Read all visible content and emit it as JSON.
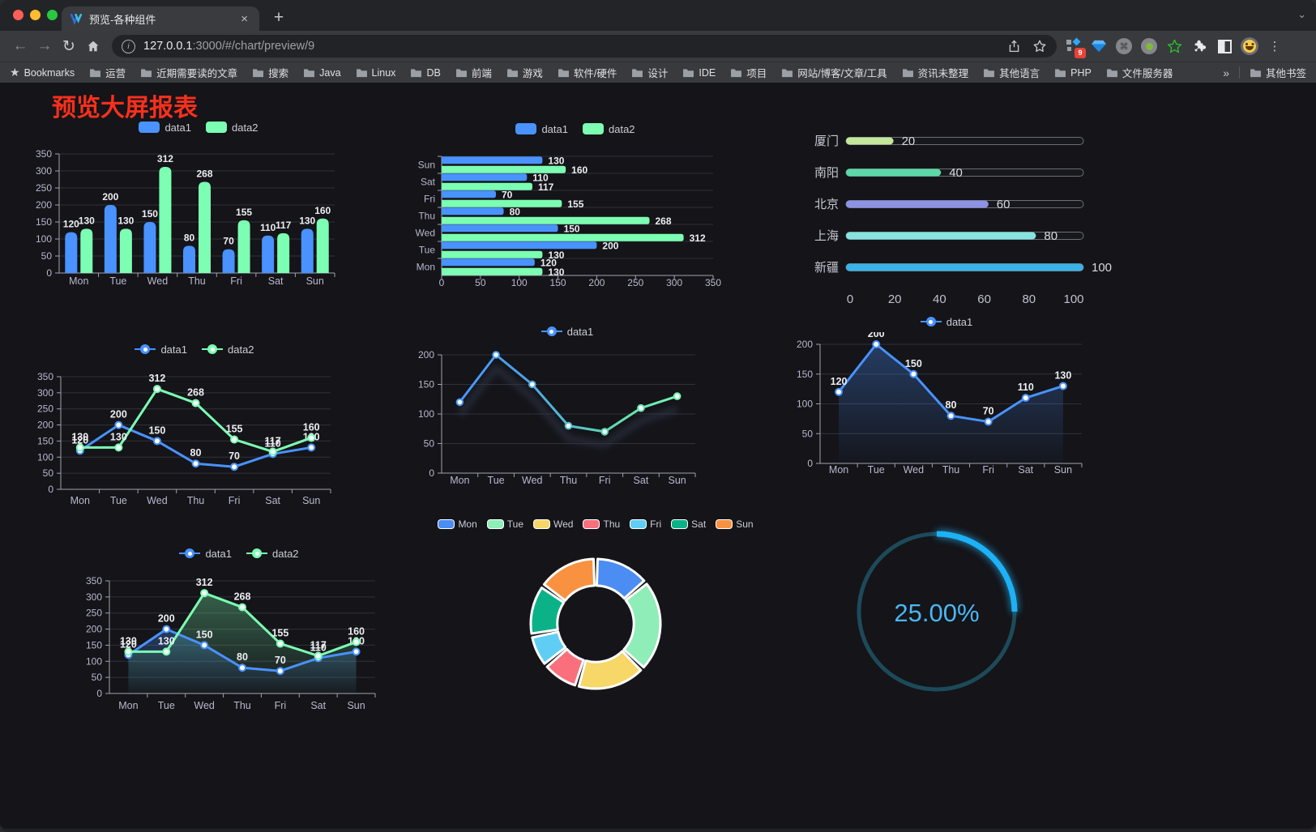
{
  "browser": {
    "traffic_lights": [
      "#ff5f57",
      "#febc2e",
      "#28c840"
    ],
    "tab": {
      "title": "预览-各种组件",
      "close_icon": "×",
      "new_tab_icon": "+",
      "strip_chevron": "⌄"
    },
    "url_host": "127.0.0.1",
    "url_rest": ":3000/#/chart/preview/9",
    "bookmarks_label": "Bookmarks",
    "bookmark_folders": [
      "运营",
      "近期需要读的文章",
      "搜索",
      "Java",
      "Linux",
      "DB",
      "前端",
      "游戏",
      "软件/硬件",
      "设计",
      "IDE",
      "项目",
      "网站/博客/文章/工具",
      "资讯未整理",
      "其他语言",
      "PHP",
      "文件服务器"
    ],
    "bookmarks_overflow_icon": "»",
    "other_bookmarks_label": "其他书签",
    "extension_badge_count": "9",
    "menu_icon": "⋮"
  },
  "page": {
    "title": "预览大屏报表"
  },
  "theme": {
    "content_bg": "#141419",
    "axis_label": "#b9b8ce",
    "axis_line": "#a2a2b0",
    "grid_line": "#31313b",
    "value_label": "#eceef2",
    "legend_text": "#cccdd6",
    "title_red": "#f8301c",
    "series_blue": "#4992ff",
    "series_green": "#7cffb2"
  },
  "chart_data": [
    {
      "id": "bar-grouped",
      "type": "bar",
      "categories": [
        "Mon",
        "Tue",
        "Wed",
        "Thu",
        "Fri",
        "Sat",
        "Sun"
      ],
      "series": [
        {
          "name": "data1",
          "color": "#4992ff",
          "values": [
            120,
            200,
            150,
            80,
            70,
            110,
            130
          ]
        },
        {
          "name": "data2",
          "color": "#7cffb2",
          "values": [
            130,
            130,
            312,
            268,
            155,
            117,
            160
          ]
        }
      ],
      "ylim": [
        0,
        350
      ],
      "ytick_step": 50,
      "legend_position": "top",
      "grid": true
    },
    {
      "id": "bar-horizontal",
      "type": "bar-horizontal",
      "categories": [
        "Mon",
        "Tue",
        "Wed",
        "Thu",
        "Fri",
        "Sat",
        "Sun"
      ],
      "series": [
        {
          "name": "data1",
          "color": "#4992ff",
          "values": [
            120,
            200,
            150,
            80,
            70,
            110,
            130
          ]
        },
        {
          "name": "data2",
          "color": "#7cffb2",
          "values": [
            130,
            130,
            312,
            268,
            155,
            117,
            160
          ]
        }
      ],
      "xlim": [
        0,
        350
      ],
      "xtick_step": 50,
      "legend_position": "top",
      "grid": true
    },
    {
      "id": "progress-list",
      "type": "progress",
      "rows": [
        {
          "label": "厦门",
          "value": 20,
          "color": "#c3e79c"
        },
        {
          "label": "南阳",
          "value": 40,
          "color": "#5bd9a8"
        },
        {
          "label": "北京",
          "value": 60,
          "color": "#8e92e4"
        },
        {
          "label": "上海",
          "value": 80,
          "color": "#86e3e0"
        },
        {
          "label": "新疆",
          "value": 100,
          "color": "#3bb2e4"
        }
      ],
      "xlim": [
        0,
        100
      ],
      "xticks": [
        0,
        20,
        40,
        60,
        80,
        100
      ]
    },
    {
      "id": "line-two",
      "type": "line",
      "categories": [
        "Mon",
        "Tue",
        "Wed",
        "Thu",
        "Fri",
        "Sat",
        "Sun"
      ],
      "series": [
        {
          "name": "data1",
          "color": "#4992ff",
          "values": [
            120,
            200,
            150,
            80,
            70,
            110,
            130
          ]
        },
        {
          "name": "data2",
          "color": "#7cffb2",
          "values": [
            130,
            130,
            312,
            268,
            155,
            117,
            160
          ]
        }
      ],
      "ylim": [
        0,
        350
      ],
      "ytick_step": 50,
      "show_labels": true,
      "legend_position": "top"
    },
    {
      "id": "line-gradient",
      "type": "line-gradient",
      "categories": [
        "Mon",
        "Tue",
        "Wed",
        "Thu",
        "Fri",
        "Sat",
        "Sun"
      ],
      "series": [
        {
          "name": "data1",
          "values": [
            120,
            200,
            150,
            80,
            70,
            110,
            130
          ]
        }
      ],
      "gradient_colors": [
        "#4992ff",
        "#4aa3e8",
        "#5fd9b0",
        "#7cffb2"
      ],
      "ylim": [
        0,
        200
      ],
      "ytick_step": 50,
      "shadow": true,
      "legend_position": "top"
    },
    {
      "id": "line-area",
      "type": "line",
      "categories": [
        "Mon",
        "Tue",
        "Wed",
        "Thu",
        "Fri",
        "Sat",
        "Sun"
      ],
      "series": [
        {
          "name": "data1",
          "color": "#4992ff",
          "values": [
            120,
            200,
            150,
            80,
            70,
            110,
            130
          ],
          "area": true
        }
      ],
      "ylim": [
        0,
        200
      ],
      "ytick_step": 50,
      "show_labels": true,
      "legend_position": "top"
    },
    {
      "id": "line-two-area",
      "type": "line",
      "categories": [
        "Mon",
        "Tue",
        "Wed",
        "Thu",
        "Fri",
        "Sat",
        "Sun"
      ],
      "series": [
        {
          "name": "data1",
          "color": "#4992ff",
          "values": [
            120,
            200,
            150,
            80,
            70,
            110,
            130
          ],
          "area": true
        },
        {
          "name": "data2",
          "color": "#7cffb2",
          "values": [
            130,
            130,
            312,
            268,
            155,
            117,
            160
          ],
          "area": true
        }
      ],
      "ylim": [
        0,
        350
      ],
      "ytick_step": 50,
      "show_labels": true,
      "legend_position": "top"
    },
    {
      "id": "donut",
      "type": "pie",
      "inner_radius_ratio": 0.59,
      "slices": [
        {
          "label": "Mon",
          "value": 120,
          "color": "#4b8df2"
        },
        {
          "label": "Tue",
          "value": 200,
          "color": "#8fedb8"
        },
        {
          "label": "Wed",
          "value": 150,
          "color": "#f6d768"
        },
        {
          "label": "Thu",
          "value": 80,
          "color": "#f9707c"
        },
        {
          "label": "Fri",
          "value": 70,
          "color": "#60cdf4"
        },
        {
          "label": "Sat",
          "value": 110,
          "color": "#0cb287"
        },
        {
          "label": "Sun",
          "value": 130,
          "color": "#f89240"
        }
      ],
      "legend_position": "top"
    },
    {
      "id": "gauge",
      "type": "gauge",
      "percent": 25,
      "value_label": "25.00%",
      "progress_color": "#1db2f5",
      "track_color": "#1d4a59",
      "text_color": "#4ab7f4"
    }
  ]
}
